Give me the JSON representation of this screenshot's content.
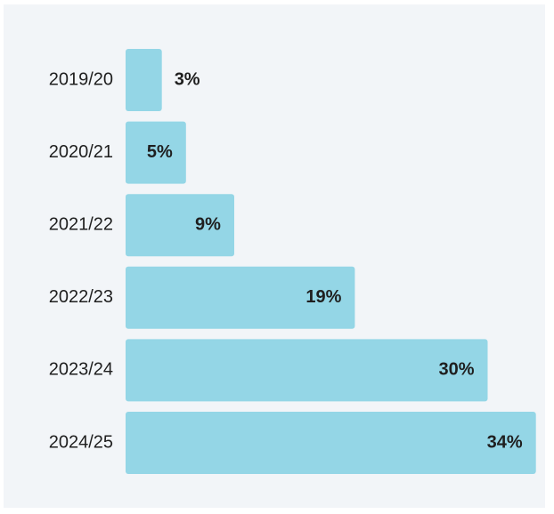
{
  "chart_data": {
    "type": "bar",
    "orientation": "horizontal",
    "categories": [
      "2019/20",
      "2020/21",
      "2021/22",
      "2022/23",
      "2023/24",
      "2024/25"
    ],
    "values": [
      3,
      5,
      9,
      19,
      30,
      34
    ],
    "value_labels": [
      "3%",
      "5%",
      "9%",
      "19%",
      "30%",
      "34%"
    ],
    "title": "",
    "xlabel": "",
    "ylabel": "",
    "grid": false,
    "colors": {
      "bar": "#94d6e6",
      "panel_background": "#f2f5f8",
      "text": "#1f1f1f"
    }
  }
}
